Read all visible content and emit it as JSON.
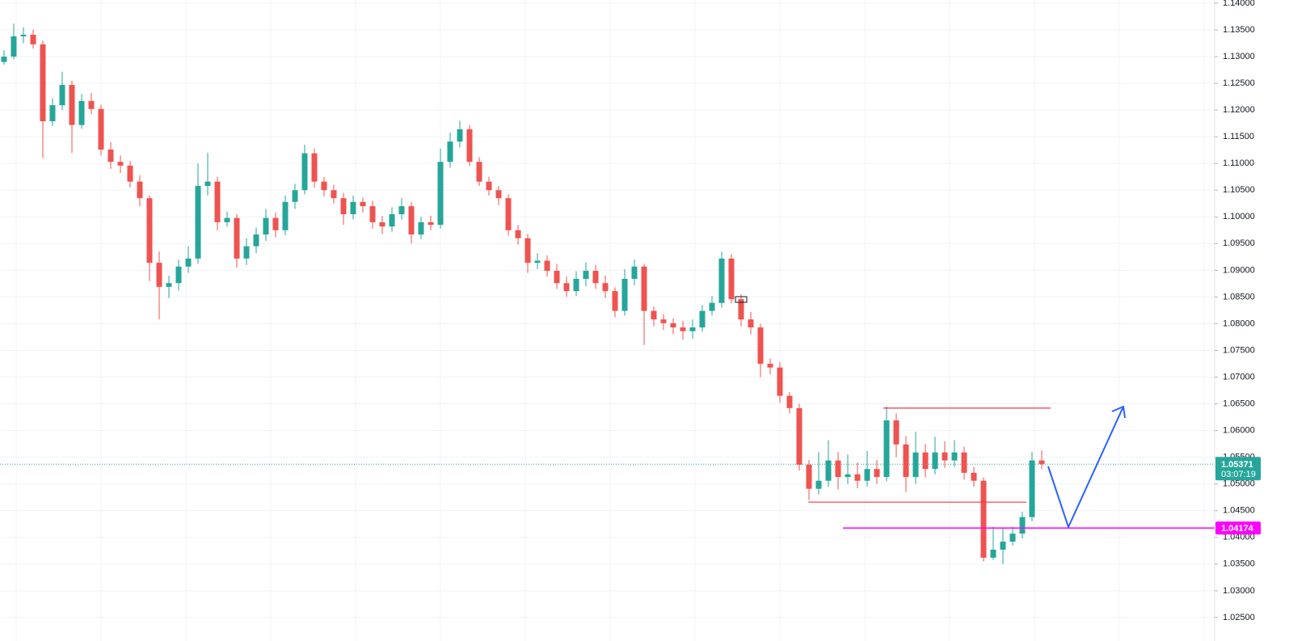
{
  "chart_data": {
    "type": "candlestick",
    "up_color": "#26a69a",
    "down_color": "#ef5350",
    "grid": true,
    "ylim": [
      1.0206,
      1.1406
    ],
    "yticks": [
      {
        "value": 1.025,
        "label": "1.02500"
      },
      {
        "value": 1.03,
        "label": "1.03000"
      },
      {
        "value": 1.035,
        "label": "1.03500"
      },
      {
        "value": 1.04,
        "label": "1.04000"
      },
      {
        "value": 1.045,
        "label": "1.04500"
      },
      {
        "value": 1.05,
        "label": "1.05000"
      },
      {
        "value": 1.055,
        "label": "1.05500"
      },
      {
        "value": 1.06,
        "label": "1.06000"
      },
      {
        "value": 1.065,
        "label": "1.06500"
      },
      {
        "value": 1.07,
        "label": "1.07000"
      },
      {
        "value": 1.075,
        "label": "1.07500"
      },
      {
        "value": 1.08,
        "label": "1.08000"
      },
      {
        "value": 1.085,
        "label": "1.08500"
      },
      {
        "value": 1.09,
        "label": "1.09000"
      },
      {
        "value": 1.095,
        "label": "1.09500"
      },
      {
        "value": 1.1,
        "label": "1.10000"
      },
      {
        "value": 1.105,
        "label": "1.10500"
      },
      {
        "value": 1.11,
        "label": "1.11000"
      },
      {
        "value": 1.115,
        "label": "1.11500"
      },
      {
        "value": 1.12,
        "label": "1.12000"
      },
      {
        "value": 1.125,
        "label": "1.12500"
      },
      {
        "value": 1.13,
        "label": "1.13000"
      },
      {
        "value": 1.135,
        "label": "1.13500"
      },
      {
        "value": 1.14,
        "label": "1.14000"
      }
    ],
    "open": [
      1.129,
      1.13,
      1.1338,
      1.1341,
      1.1323,
      1.1179,
      1.1209,
      1.1247,
      1.1172,
      1.1217,
      1.1202,
      1.1126,
      1.1103,
      1.1096,
      1.1066,
      1.1035,
      1.0914,
      1.0869,
      1.0876,
      1.0907,
      1.0922,
      1.1058,
      1.1066,
      1.099,
      1.0998,
      1.0922,
      1.0945,
      1.0967,
      1.0998,
      1.0975,
      1.1028,
      1.105,
      1.1119,
      1.1066,
      1.105,
      1.1035,
      1.1005,
      1.1028,
      1.102,
      1.099,
      1.0982,
      1.1005,
      1.102,
      1.0967,
      1.099,
      1.0985,
      1.1103,
      1.1141,
      1.1164,
      1.1103,
      1.1066,
      1.105,
      1.1035,
      1.0975,
      1.096,
      1.0914,
      1.0918,
      1.0899,
      1.0876,
      1.0861,
      1.0884,
      1.0899,
      1.0876,
      1.0861,
      1.0824,
      1.0884,
      1.0907,
      1.0824,
      1.0808,
      1.0801,
      1.0793,
      1.0786,
      1.0793,
      1.0824,
      1.0839,
      1.0922,
      1.0846,
      1.0808,
      1.0793,
      1.0725,
      1.0718,
      1.0665,
      1.0642,
      1.0536,
      1.0491,
      1.0506,
      1.0544,
      1.0513,
      1.0518,
      1.0506,
      1.0528,
      1.0513,
      1.0619,
      1.0574,
      1.0513,
      1.0559,
      1.0528,
      1.0559,
      1.0544,
      1.0559,
      1.0521,
      1.0506,
      1.0362,
      1.0377,
      1.0392,
      1.0407,
      1.0438,
      1.0544
    ],
    "high": [
      1.1312,
      1.1362,
      1.1355,
      1.135,
      1.133,
      1.1222,
      1.1272,
      1.1255,
      1.123,
      1.1232,
      1.121,
      1.114,
      1.1115,
      1.1105,
      1.1078,
      1.104,
      1.0935,
      1.089,
      1.092,
      1.0945,
      1.11,
      1.112,
      1.1075,
      1.101,
      1.1005,
      1.096,
      1.098,
      1.1015,
      1.1008,
      1.104,
      1.1062,
      1.1135,
      1.1128,
      1.1075,
      1.106,
      1.1045,
      1.104,
      1.1036,
      1.103,
      1.1002,
      1.1018,
      1.1035,
      1.1028,
      1.1,
      1.1002,
      1.1128,
      1.1158,
      1.118,
      1.1172,
      1.1112,
      1.1075,
      1.1058,
      1.1042,
      1.0985,
      1.0968,
      1.0932,
      1.0928,
      1.0912,
      1.0888,
      1.0898,
      1.0915,
      1.091,
      1.089,
      1.0868,
      1.0902,
      1.092,
      1.0912,
      1.0832,
      1.0818,
      1.081,
      1.0805,
      1.0808,
      1.0835,
      1.0852,
      1.0935,
      1.093,
      1.0855,
      1.0822,
      1.08,
      1.0735,
      1.0728,
      1.0672,
      1.065,
      1.0545,
      1.056,
      1.0582,
      1.056,
      1.0555,
      1.054,
      1.0562,
      1.0545,
      1.0645,
      1.0632,
      1.059,
      1.0598,
      1.0575,
      1.0588,
      1.058,
      1.0582,
      1.057,
      1.0532,
      1.0512,
      1.042,
      1.0418,
      1.042,
      1.0448,
      1.056,
      1.0563
    ],
    "low": [
      1.1285,
      1.1295,
      1.1325,
      1.1315,
      1.111,
      1.117,
      1.12,
      1.112,
      1.1165,
      1.1192,
      1.1115,
      1.109,
      1.1082,
      1.1055,
      1.102,
      1.088,
      1.0808,
      1.0848,
      1.0862,
      1.0895,
      1.0912,
      1.104,
      1.0975,
      1.0982,
      1.0905,
      1.091,
      1.0932,
      1.0955,
      1.0962,
      1.0966,
      1.1015,
      1.1042,
      1.1055,
      1.1038,
      1.1025,
      1.0985,
      1.0995,
      1.1008,
      1.0978,
      1.0968,
      1.0972,
      1.0995,
      1.095,
      1.0958,
      1.0975,
      1.0978,
      1.1092,
      1.113,
      1.1095,
      1.1058,
      1.104,
      1.1022,
      1.0965,
      1.0948,
      1.0895,
      1.0902,
      1.0888,
      1.0865,
      1.085,
      1.0852,
      1.087,
      1.0865,
      1.0848,
      1.0812,
      1.0815,
      1.0872,
      1.076,
      1.0795,
      1.0788,
      1.078,
      1.077,
      1.0772,
      1.0785,
      1.0815,
      1.083,
      1.0838,
      1.0795,
      1.078,
      1.07,
      1.0705,
      1.0652,
      1.0632,
      1.0525,
      1.047,
      1.048,
      1.0495,
      1.049,
      1.05,
      1.0492,
      1.0495,
      1.05,
      1.0505,
      1.055,
      1.0485,
      1.05,
      1.0512,
      1.0518,
      1.053,
      1.0532,
      1.0508,
      1.0495,
      1.0355,
      1.0358,
      1.035,
      1.0385,
      1.0398,
      1.043,
      1.0528
    ],
    "close": [
      1.13,
      1.1338,
      1.1341,
      1.1323,
      1.1179,
      1.1209,
      1.1247,
      1.1172,
      1.1217,
      1.1202,
      1.1126,
      1.1103,
      1.1096,
      1.1066,
      1.1035,
      1.0914,
      1.0869,
      1.0876,
      1.0907,
      1.0922,
      1.1058,
      1.1066,
      1.099,
      1.0998,
      1.0922,
      1.0945,
      1.0967,
      1.0998,
      1.0975,
      1.1028,
      1.105,
      1.1119,
      1.1066,
      1.105,
      1.1035,
      1.1005,
      1.1028,
      1.102,
      1.099,
      1.0982,
      1.1005,
      1.102,
      1.0967,
      1.099,
      1.0985,
      1.1103,
      1.1141,
      1.1164,
      1.1103,
      1.1066,
      1.105,
      1.1035,
      1.0975,
      1.096,
      1.0914,
      1.0918,
      1.0899,
      1.0876,
      1.0861,
      1.0884,
      1.0899,
      1.0876,
      1.0861,
      1.0824,
      1.0884,
      1.0907,
      1.0824,
      1.0808,
      1.0801,
      1.0793,
      1.0786,
      1.0793,
      1.0824,
      1.0839,
      1.0922,
      1.0846,
      1.0808,
      1.0793,
      1.0725,
      1.0718,
      1.0665,
      1.0642,
      1.0536,
      1.0491,
      1.0506,
      1.0544,
      1.0513,
      1.0518,
      1.0506,
      1.0528,
      1.0513,
      1.0619,
      1.0574,
      1.0513,
      1.0559,
      1.0528,
      1.0559,
      1.0544,
      1.0559,
      1.0521,
      1.0506,
      1.0362,
      1.0377,
      1.0392,
      1.0407,
      1.0438,
      1.0544,
      1.0537
    ],
    "last_price": 1.05371,
    "last_price_color": "#26a69a",
    "countdown": "03:07:19",
    "levels": [
      {
        "value": 1.0642,
        "color": "#f23645"
      },
      {
        "value": 1.0466,
        "color": "#f23645"
      },
      {
        "value": 1.04174,
        "color": "#ff00ff"
      }
    ]
  }
}
